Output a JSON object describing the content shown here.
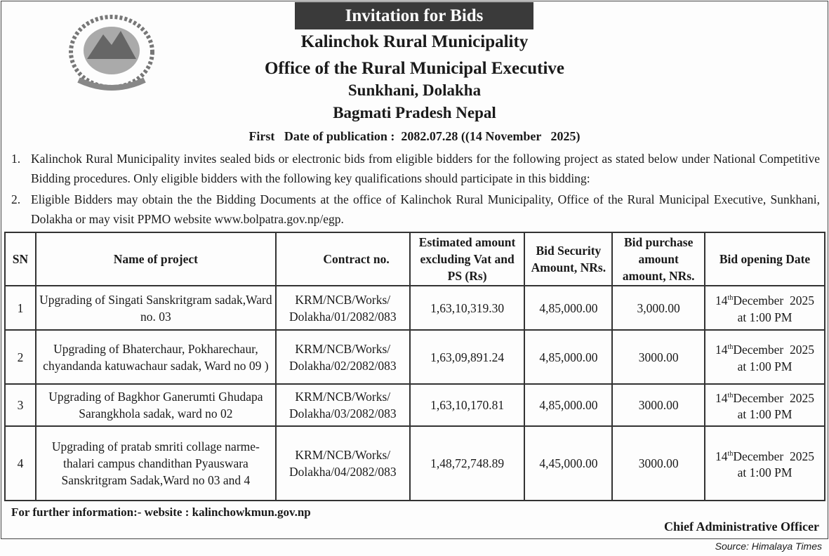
{
  "header": {
    "title": "Invitation for Bids",
    "org": "Kalinchok Rural Municipality",
    "office": "Office of the Rural Municipal Executive",
    "location": "Sunkhani, Dolakha",
    "province": "Bagmati Pradesh Nepal",
    "publication": "First   Date of publication :  2082.07.28 ((14 November   2025)"
  },
  "paragraphs": [
    {
      "num": "1.",
      "text": "Kalinchok Rural Municipality  invites  sealed bids or electronic bids from eligible bidders for the following project  as stated  below under National Competitive Bidding procedures. Only eligible bidders with the following key qualifications should participate in this bidding:"
    },
    {
      "num": "2.",
      "text": "Eligible Bidders may obtain the the Bidding Documents at the office of Kalinchok Rural Municipality, Office of the Rural Municipal Executive, Sunkhani, Dolakha  or may visit PPMO website www.bolpatra.gov.np/egp."
    }
  ],
  "table": {
    "headers": [
      "SN",
      "Name of project",
      "Contract no.",
      "Estimated amount excluding Vat and PS (Rs)",
      "Bid  Security Amount, NRs.",
      "Bid purchase amount amount, NRs.",
      "Bid opening Date"
    ],
    "rows": [
      {
        "sn": "1",
        "name": "Upgrading of Singati Sanskritgram sadak,Ward no. 03",
        "contract": "KRM/NCB/Works/ Dolakha/01/2082/083",
        "estimate": "1,63,10,319.30",
        "security": "4,85,000.00",
        "purchase": "3,000.00",
        "day": "14",
        "sup": "th",
        "date": "December  2025",
        "time": "at 1:00 PM"
      },
      {
        "sn": "2",
        "name": "Upgrading of  Bhaterchaur, Pokharechaur, chyandanda katuwachaur sadak, Ward no 09 )",
        "contract": "KRM/NCB/Works/ Dolakha/02/2082/083",
        "estimate": "1,63,09,891.24",
        "security": "4,85,000.00",
        "purchase": "3000.00",
        "day": "14",
        "sup": "th",
        "date": "December  2025",
        "time": "at 1:00 PM"
      },
      {
        "sn": "3",
        "name": "Upgrading of  Bagkhor Ganerumti Ghudapa Sarangkhola  sadak, ward no 02",
        "contract": "KRM/NCB/Works/ Dolakha/03/2082/083",
        "estimate": "1,63,10,170.81",
        "security": "4,85,000.00",
        "purchase": "3000.00",
        "day": "14",
        "sup": "th",
        "date": "December  2025",
        "time": "at 1:00 PM"
      },
      {
        "sn": "4",
        "name": "Upgrading of pratab smriti collage narme-thalari campus chandithan Pyauswara Sanskritgram Sadak,Ward no 03 and 4",
        "contract": "KRM/NCB/Works/ Dolakha/04/2082/083",
        "estimate": "1,48,72,748.89",
        "security": "4,45,000.00",
        "purchase": "3000.00",
        "day": "14",
        "sup": "th",
        "date": "December  2025",
        "time": "at 1:00 PM"
      }
    ]
  },
  "footer": {
    "info": "For further information:- website : kalinchowkmun.gov.np",
    "signatory": "Chief Administrative Officer",
    "source": "Source: Himalaya Times"
  }
}
